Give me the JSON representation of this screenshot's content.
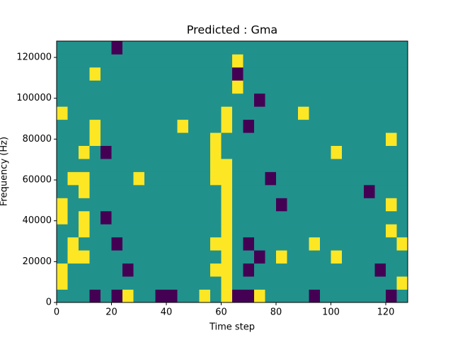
{
  "chart_data": {
    "type": "heatmap",
    "title": "Predicted : Gma",
    "xlabel": "Time step",
    "ylabel": "Frequency (Hz)",
    "xlim": [
      0,
      128
    ],
    "ylim": [
      0,
      128000
    ],
    "xticks": [
      0,
      20,
      40,
      60,
      80,
      100,
      120
    ],
    "yticks": [
      0,
      20000,
      40000,
      60000,
      80000,
      100000,
      120000
    ],
    "colors": [
      "#440154",
      "#21918c",
      "#fde725"
    ],
    "z": [
      [
        1,
        1,
        1,
        0,
        1,
        0,
        2,
        1,
        1,
        0,
        0,
        1,
        1,
        2,
        1,
        2,
        0,
        0,
        2,
        1,
        1,
        1,
        1,
        0,
        1,
        1,
        1,
        1,
        1,
        1,
        0,
        1
      ],
      [
        2,
        1,
        1,
        1,
        1,
        1,
        1,
        1,
        1,
        1,
        1,
        1,
        1,
        1,
        1,
        2,
        1,
        1,
        1,
        1,
        1,
        1,
        1,
        1,
        1,
        1,
        1,
        1,
        1,
        1,
        1,
        2
      ],
      [
        2,
        1,
        1,
        1,
        1,
        1,
        0,
        1,
        1,
        1,
        1,
        1,
        1,
        1,
        2,
        2,
        1,
        0,
        1,
        1,
        1,
        1,
        1,
        1,
        1,
        1,
        1,
        1,
        1,
        0,
        1,
        1
      ],
      [
        1,
        2,
        2,
        1,
        1,
        1,
        1,
        1,
        1,
        1,
        1,
        1,
        1,
        1,
        1,
        2,
        1,
        1,
        0,
        1,
        2,
        1,
        1,
        1,
        1,
        2,
        1,
        1,
        1,
        1,
        1,
        1
      ],
      [
        1,
        2,
        1,
        1,
        1,
        0,
        1,
        1,
        1,
        1,
        1,
        1,
        1,
        1,
        2,
        2,
        1,
        0,
        1,
        1,
        1,
        1,
        1,
        2,
        1,
        1,
        1,
        1,
        1,
        1,
        1,
        2
      ],
      [
        1,
        1,
        2,
        1,
        1,
        1,
        1,
        1,
        1,
        1,
        1,
        1,
        1,
        1,
        1,
        2,
        1,
        1,
        1,
        1,
        1,
        1,
        1,
        1,
        1,
        1,
        1,
        1,
        1,
        1,
        2,
        1
      ],
      [
        2,
        1,
        2,
        1,
        0,
        1,
        1,
        1,
        1,
        1,
        1,
        1,
        1,
        1,
        1,
        2,
        1,
        1,
        1,
        1,
        1,
        1,
        1,
        1,
        1,
        1,
        1,
        1,
        1,
        1,
        1,
        1
      ],
      [
        2,
        1,
        1,
        1,
        1,
        1,
        1,
        1,
        1,
        1,
        1,
        1,
        1,
        1,
        1,
        2,
        1,
        1,
        1,
        1,
        0,
        1,
        1,
        1,
        1,
        1,
        1,
        1,
        1,
        1,
        2,
        1
      ],
      [
        1,
        1,
        2,
        1,
        1,
        1,
        1,
        1,
        1,
        1,
        1,
        1,
        1,
        1,
        1,
        2,
        1,
        1,
        1,
        1,
        1,
        1,
        1,
        1,
        1,
        1,
        1,
        1,
        0,
        1,
        1,
        1
      ],
      [
        1,
        2,
        2,
        1,
        1,
        1,
        1,
        2,
        1,
        1,
        1,
        1,
        1,
        1,
        2,
        2,
        1,
        1,
        1,
        0,
        1,
        1,
        1,
        1,
        1,
        1,
        1,
        1,
        1,
        1,
        1,
        1
      ],
      [
        1,
        1,
        1,
        1,
        1,
        1,
        1,
        1,
        1,
        1,
        1,
        1,
        1,
        1,
        2,
        2,
        1,
        1,
        1,
        1,
        1,
        1,
        1,
        1,
        1,
        1,
        1,
        1,
        1,
        1,
        1,
        1
      ],
      [
        1,
        1,
        2,
        1,
        0,
        1,
        1,
        1,
        1,
        1,
        1,
        1,
        1,
        1,
        2,
        1,
        1,
        1,
        1,
        1,
        1,
        1,
        1,
        1,
        1,
        2,
        1,
        1,
        1,
        1,
        1,
        1
      ],
      [
        1,
        1,
        1,
        2,
        1,
        1,
        1,
        1,
        1,
        1,
        1,
        1,
        1,
        1,
        2,
        1,
        1,
        1,
        1,
        1,
        1,
        1,
        1,
        1,
        1,
        1,
        1,
        1,
        1,
        1,
        2,
        1
      ],
      [
        1,
        1,
        1,
        2,
        1,
        1,
        1,
        1,
        1,
        1,
        1,
        2,
        1,
        1,
        1,
        2,
        1,
        0,
        1,
        1,
        1,
        1,
        1,
        1,
        1,
        1,
        1,
        1,
        1,
        1,
        1,
        1
      ],
      [
        2,
        1,
        1,
        1,
        1,
        1,
        1,
        1,
        1,
        1,
        1,
        1,
        1,
        1,
        1,
        2,
        1,
        1,
        1,
        1,
        1,
        1,
        2,
        1,
        1,
        1,
        1,
        1,
        1,
        1,
        1,
        1
      ],
      [
        1,
        1,
        1,
        1,
        1,
        1,
        1,
        1,
        1,
        1,
        1,
        1,
        1,
        1,
        1,
        1,
        1,
        1,
        0,
        1,
        1,
        1,
        1,
        1,
        1,
        1,
        1,
        1,
        1,
        1,
        1,
        1
      ],
      [
        1,
        1,
        1,
        1,
        1,
        1,
        1,
        1,
        1,
        1,
        1,
        1,
        1,
        1,
        1,
        1,
        2,
        1,
        1,
        1,
        1,
        1,
        1,
        1,
        1,
        1,
        1,
        1,
        1,
        1,
        1,
        1
      ],
      [
        1,
        1,
        1,
        2,
        1,
        1,
        1,
        1,
        1,
        1,
        1,
        1,
        1,
        1,
        1,
        1,
        0,
        1,
        1,
        1,
        1,
        1,
        1,
        1,
        1,
        1,
        1,
        1,
        1,
        1,
        1,
        1
      ],
      [
        1,
        1,
        1,
        1,
        1,
        1,
        1,
        1,
        1,
        1,
        1,
        1,
        1,
        1,
        1,
        1,
        2,
        1,
        1,
        1,
        1,
        1,
        1,
        1,
        1,
        1,
        1,
        1,
        1,
        1,
        1,
        1
      ],
      [
        1,
        1,
        1,
        1,
        1,
        0,
        1,
        1,
        1,
        1,
        1,
        1,
        1,
        1,
        1,
        1,
        1,
        1,
        1,
        1,
        1,
        1,
        1,
        1,
        1,
        1,
        1,
        1,
        1,
        1,
        1,
        1
      ]
    ]
  }
}
